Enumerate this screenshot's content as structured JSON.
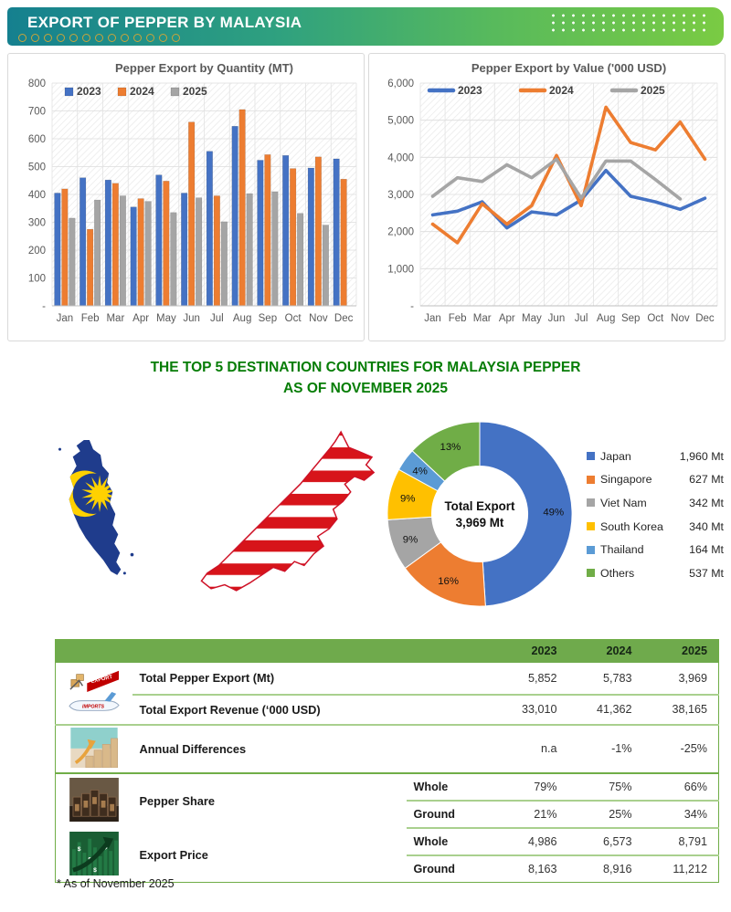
{
  "header": {
    "title": "EXPORT OF PEPPER BY MALAYSIA"
  },
  "section_title": {
    "line1": "THE TOP 5 DESTINATION COUNTRIES FOR MALAYSIA PEPPER",
    "line2": "AS OF NOVEMBER 2025"
  },
  "chart_data": [
    {
      "type": "bar",
      "title": "Pepper Export by Quantity (MT)",
      "categories": [
        "Jan",
        "Feb",
        "Mar",
        "Apr",
        "May",
        "Jun",
        "Jul",
        "Aug",
        "Sep",
        "Oct",
        "Nov",
        "Dec"
      ],
      "series": [
        {
          "name": "2023",
          "color": "#4472C4",
          "values": [
            405,
            460,
            452,
            355,
            470,
            405,
            555,
            645,
            523,
            540,
            495,
            528
          ]
        },
        {
          "name": "2024",
          "color": "#ED7D31",
          "values": [
            420,
            275,
            440,
            385,
            448,
            660,
            395,
            705,
            543,
            493,
            535,
            455
          ]
        },
        {
          "name": "2025",
          "color": "#A5A5A5",
          "values": [
            315,
            380,
            395,
            375,
            335,
            388,
            302,
            403,
            410,
            332,
            290,
            null
          ]
        }
      ],
      "ylim": [
        0,
        800
      ],
      "ytick_step": 100,
      "zero_label": "-",
      "grid": true,
      "legend_position": "top-left"
    },
    {
      "type": "line",
      "title": "Pepper Export by Value ('000 USD)",
      "categories": [
        "Jan",
        "Feb",
        "Mar",
        "Apr",
        "May",
        "Jun",
        "Jul",
        "Aug",
        "Sep",
        "Oct",
        "Nov",
        "Dec"
      ],
      "series": [
        {
          "name": "2023",
          "color": "#4472C4",
          "values": [
            2450,
            2550,
            2800,
            2100,
            2530,
            2450,
            2850,
            3650,
            2950,
            2800,
            2600,
            2900
          ]
        },
        {
          "name": "2024",
          "color": "#ED7D31",
          "values": [
            2200,
            1700,
            2750,
            2200,
            2700,
            4050,
            2700,
            5350,
            4400,
            4200,
            4950,
            3950
          ]
        },
        {
          "name": "2025",
          "color": "#A5A5A5",
          "values": [
            2950,
            3450,
            3350,
            3800,
            3450,
            3950,
            2900,
            3900,
            3900,
            3400,
            2880,
            null
          ]
        }
      ],
      "ylim": [
        0,
        6000
      ],
      "ytick_step": 1000,
      "zero_label": "-",
      "grid": true,
      "legend_position": "top-left"
    },
    {
      "type": "pie",
      "center_label": [
        "Total Export",
        "3,969 Mt"
      ],
      "donut_hole": 0.52,
      "start_angle": 0,
      "direction": "clockwise",
      "slices": [
        {
          "label": "Japan",
          "pct": 49,
          "value": "1,960 Mt",
          "color": "#4472C4"
        },
        {
          "label": "Singapore",
          "pct": 16,
          "value": "627 Mt",
          "color": "#ED7D31"
        },
        {
          "label": "Viet Nam",
          "pct": 9,
          "value": "342 Mt",
          "color": "#A5A5A5"
        },
        {
          "label": "South Korea",
          "pct": 9,
          "value": "340 Mt",
          "color": "#FFC000"
        },
        {
          "label": "Thailand",
          "pct": 4,
          "value": "164 Mt",
          "color": "#5B9BD5"
        },
        {
          "label": "Others",
          "pct": 13,
          "value": "537 Mt",
          "color": "#70AD47"
        }
      ]
    }
  ],
  "table": {
    "col_headers": [
      "2023",
      "2024",
      "2025"
    ],
    "rows": [
      {
        "label": "Total Pepper Export (Mt)",
        "values": [
          "5,852",
          "5,783",
          "3,969"
        ]
      },
      {
        "label": "Total Export Revenue (‘000 USD)",
        "values": [
          "33,010",
          "41,362",
          "38,165"
        ]
      },
      {
        "label": "Annual Differences",
        "values": [
          "n.a",
          "-1%",
          "-25%"
        ]
      },
      {
        "label": "Pepper Share",
        "sub": [
          {
            "name": "Whole",
            "values": [
              "79%",
              "75%",
              "66%"
            ]
          },
          {
            "name": "Ground",
            "values": [
              "21%",
              "25%",
              "34%"
            ]
          }
        ]
      },
      {
        "label": "Export Price",
        "sub": [
          {
            "name": "Whole",
            "values": [
              "4,986",
              "6,573",
              "8,791"
            ]
          },
          {
            "name": "Ground",
            "values": [
              "8,163",
              "8,916",
              "11,212"
            ]
          }
        ]
      }
    ]
  },
  "icons": {
    "export_label": "EXPORT",
    "imports_label": "IMPORTS",
    "dollar": "$"
  },
  "footnote": "* As of November 2025",
  "colors": {
    "banner_left": "#15808F",
    "banner_right": "#7ACB43",
    "title_green": "#067d06",
    "table_header_green": "#6FAA4C",
    "table_line_green": "#A9D08E",
    "series_blue": "#4472C4",
    "series_orange": "#ED7D31",
    "series_gray": "#A5A5A5",
    "gold": "#FFC000",
    "light_blue": "#5B9BD5",
    "green": "#70AD47"
  }
}
